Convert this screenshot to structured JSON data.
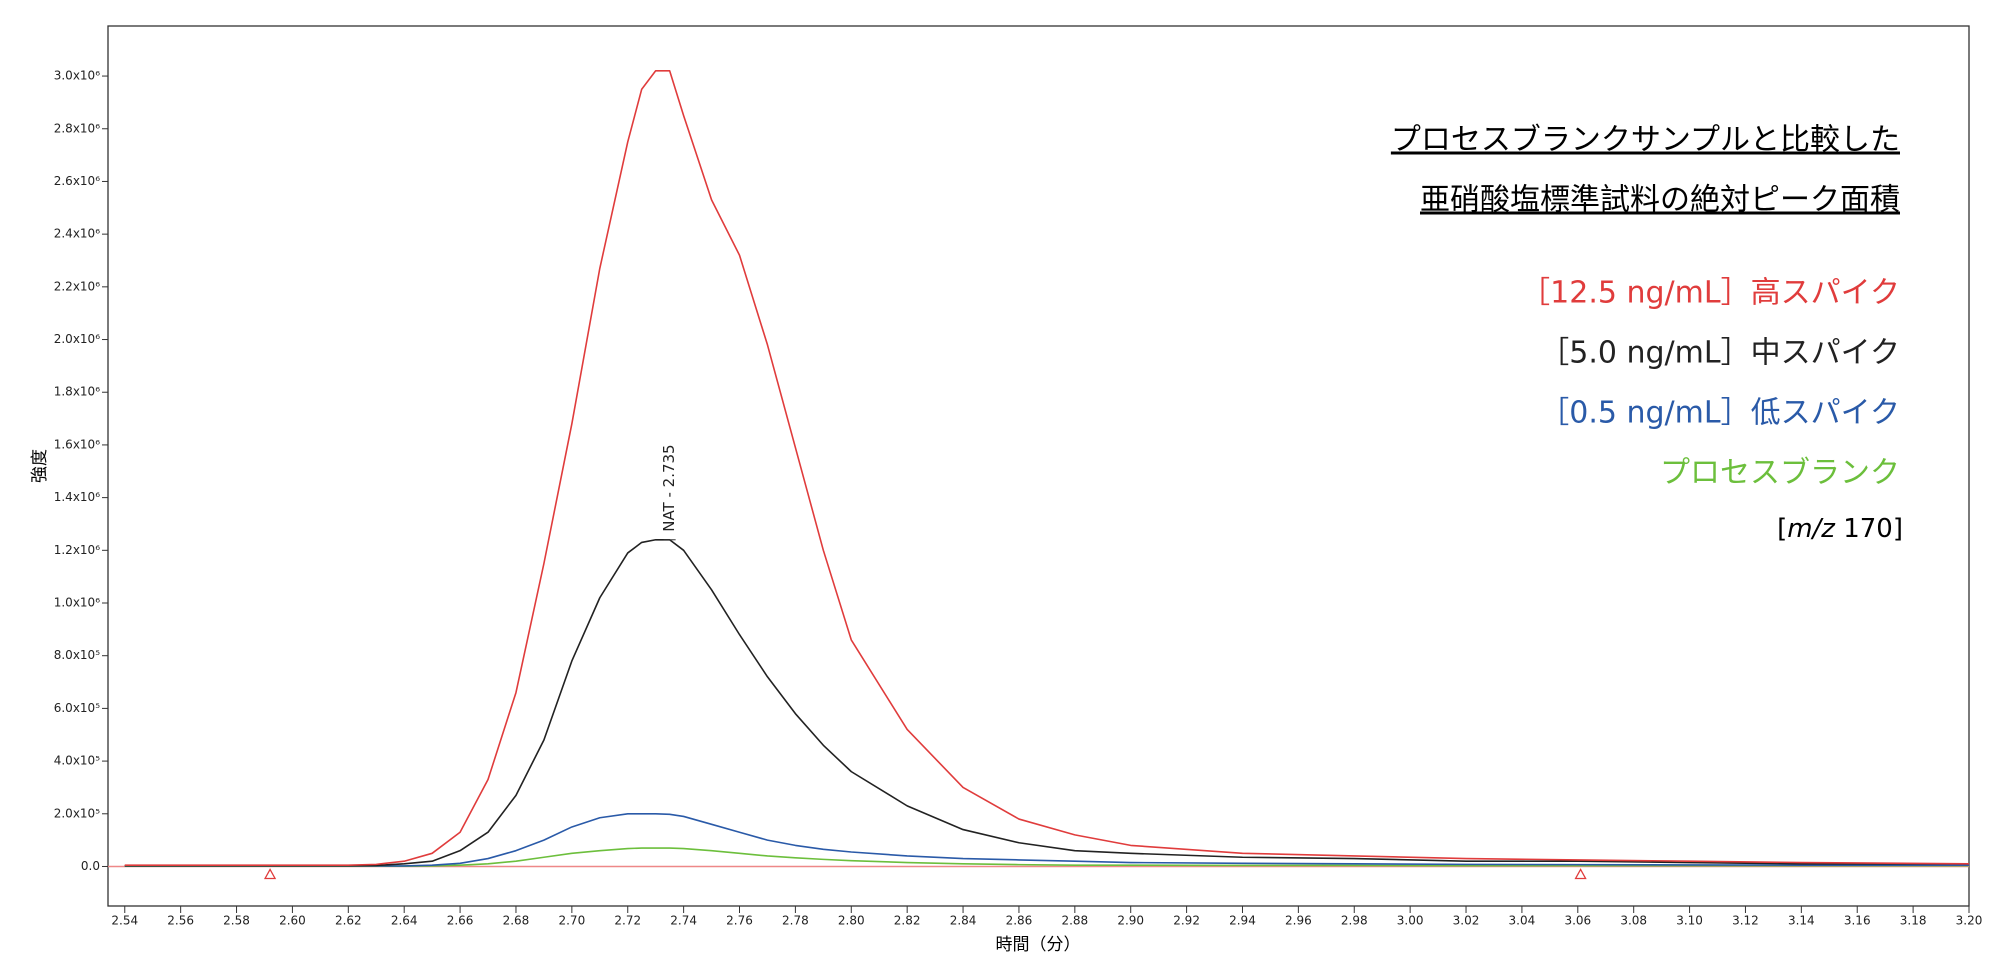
{
  "chart_data": {
    "type": "line",
    "title_lines": [
      "プロセスブランクサンプルと比較した",
      "亜硝酸塩標準試料の絶対ピーク面積"
    ],
    "x_label": "時間（分）",
    "y_label": "強度",
    "annotation": "NAT - 2.735",
    "annotation_x": 2.735,
    "annotation_y": 1240000,
    "mz_label": {
      "prefix": "[",
      "italic": "m/z",
      "suffix": " 170]"
    },
    "baseline_markers": [
      2.592,
      3.061
    ],
    "xlim": [
      2.534,
      3.2
    ],
    "ylim": [
      -150000,
      3190000
    ],
    "xticks": [
      2.54,
      2.56,
      2.58,
      {
        "value": 2.6,
        "label": "2.60"
      },
      2.62,
      2.64,
      2.66,
      2.68,
      {
        "value": 2.7,
        "label": "2.70"
      },
      2.72,
      2.74,
      2.76,
      2.78,
      {
        "value": 2.8,
        "label": "2.80"
      },
      2.82,
      2.84,
      2.86,
      2.88,
      {
        "value": 2.9,
        "label": "2.90"
      },
      2.92,
      2.94,
      2.96,
      2.98,
      {
        "value": 3.0,
        "label": "3.00"
      },
      3.02,
      3.04,
      3.06,
      3.08,
      {
        "value": 3.1,
        "label": "3.10"
      },
      3.12,
      3.14,
      3.16,
      3.18,
      {
        "value": 3.2,
        "label": "3.20"
      }
    ],
    "yticks": [
      {
        "value": 0,
        "label": "0.0"
      },
      {
        "value": 200000,
        "label": "2.0x10⁵"
      },
      {
        "value": 400000,
        "label": "4.0x10⁵"
      },
      {
        "value": 600000,
        "label": "6.0x10⁵"
      },
      {
        "value": 800000,
        "label": "8.0x10⁵"
      },
      {
        "value": 1000000,
        "label": "1.0x10⁶"
      },
      {
        "value": 1200000,
        "label": "1.2x10⁶"
      },
      {
        "value": 1400000,
        "label": "1.4x10⁶"
      },
      {
        "value": 1600000,
        "label": "1.6x10⁶"
      },
      {
        "value": 1800000,
        "label": "1.8x10⁶"
      },
      {
        "value": 2000000,
        "label": "2.0x10⁶"
      },
      {
        "value": 2200000,
        "label": "2.2x10⁶"
      },
      {
        "value": 2400000,
        "label": "2.4x10⁶"
      },
      {
        "value": 2600000,
        "label": "2.6x10⁶"
      },
      {
        "value": 2800000,
        "label": "2.8x10⁶"
      },
      {
        "value": 3000000,
        "label": "3.0x10⁶"
      }
    ],
    "x": [
      2.54,
      2.6,
      2.62,
      2.63,
      2.64,
      2.65,
      2.66,
      2.67,
      2.68,
      2.69,
      2.7,
      2.71,
      2.72,
      2.725,
      2.73,
      2.735,
      2.74,
      2.75,
      2.76,
      2.77,
      2.78,
      2.79,
      2.8,
      2.82,
      2.84,
      2.86,
      2.88,
      2.9,
      2.94,
      2.98,
      3.02,
      3.06,
      3.1,
      3.14,
      3.2
    ],
    "series": [
      {
        "name": "［12.5 ng/mL］高スパイク",
        "color": "#e03c3c",
        "values": [
          5000,
          5000,
          5000,
          8000,
          20000,
          50000,
          130000,
          330000,
          660000,
          1150000,
          1680000,
          2270000,
          2750000,
          2950000,
          3020000,
          3020000,
          2850000,
          2530000,
          2320000,
          1980000,
          1590000,
          1200000,
          860000,
          520000,
          300000,
          180000,
          120000,
          80000,
          50000,
          40000,
          30000,
          25000,
          20000,
          15000,
          10000
        ]
      },
      {
        "name": "［5.0 ng/mL］中スパイク",
        "color": "#222222",
        "values": [
          3000,
          3000,
          3000,
          4000,
          10000,
          20000,
          60000,
          130000,
          270000,
          480000,
          780000,
          1020000,
          1190000,
          1230000,
          1240000,
          1240000,
          1200000,
          1050000,
          880000,
          720000,
          580000,
          460000,
          360000,
          230000,
          140000,
          90000,
          60000,
          50000,
          35000,
          30000,
          20000,
          20000,
          15000,
          10000,
          10000
        ]
      },
      {
        "name": "［0.5 ng/mL］低スパイク",
        "color": "#2a5aa8",
        "values": [
          2000,
          2000,
          2000,
          2000,
          2000,
          5000,
          12000,
          30000,
          60000,
          100000,
          150000,
          185000,
          200000,
          200000,
          200000,
          198000,
          190000,
          160000,
          130000,
          100000,
          80000,
          65000,
          55000,
          40000,
          30000,
          25000,
          20000,
          15000,
          12000,
          10000,
          8000,
          7000,
          6000,
          5000,
          5000
        ]
      },
      {
        "name": "プロセスブランク",
        "color": "#6cbf3c",
        "values": [
          1000,
          1000,
          1000,
          1000,
          1000,
          2000,
          5000,
          10000,
          20000,
          35000,
          50000,
          60000,
          68000,
          70000,
          70000,
          70000,
          68000,
          60000,
          50000,
          40000,
          33000,
          27000,
          22000,
          15000,
          10000,
          7000,
          5000,
          5000,
          4000,
          4000,
          3000,
          3000,
          3000,
          3000,
          3000
        ]
      }
    ]
  }
}
